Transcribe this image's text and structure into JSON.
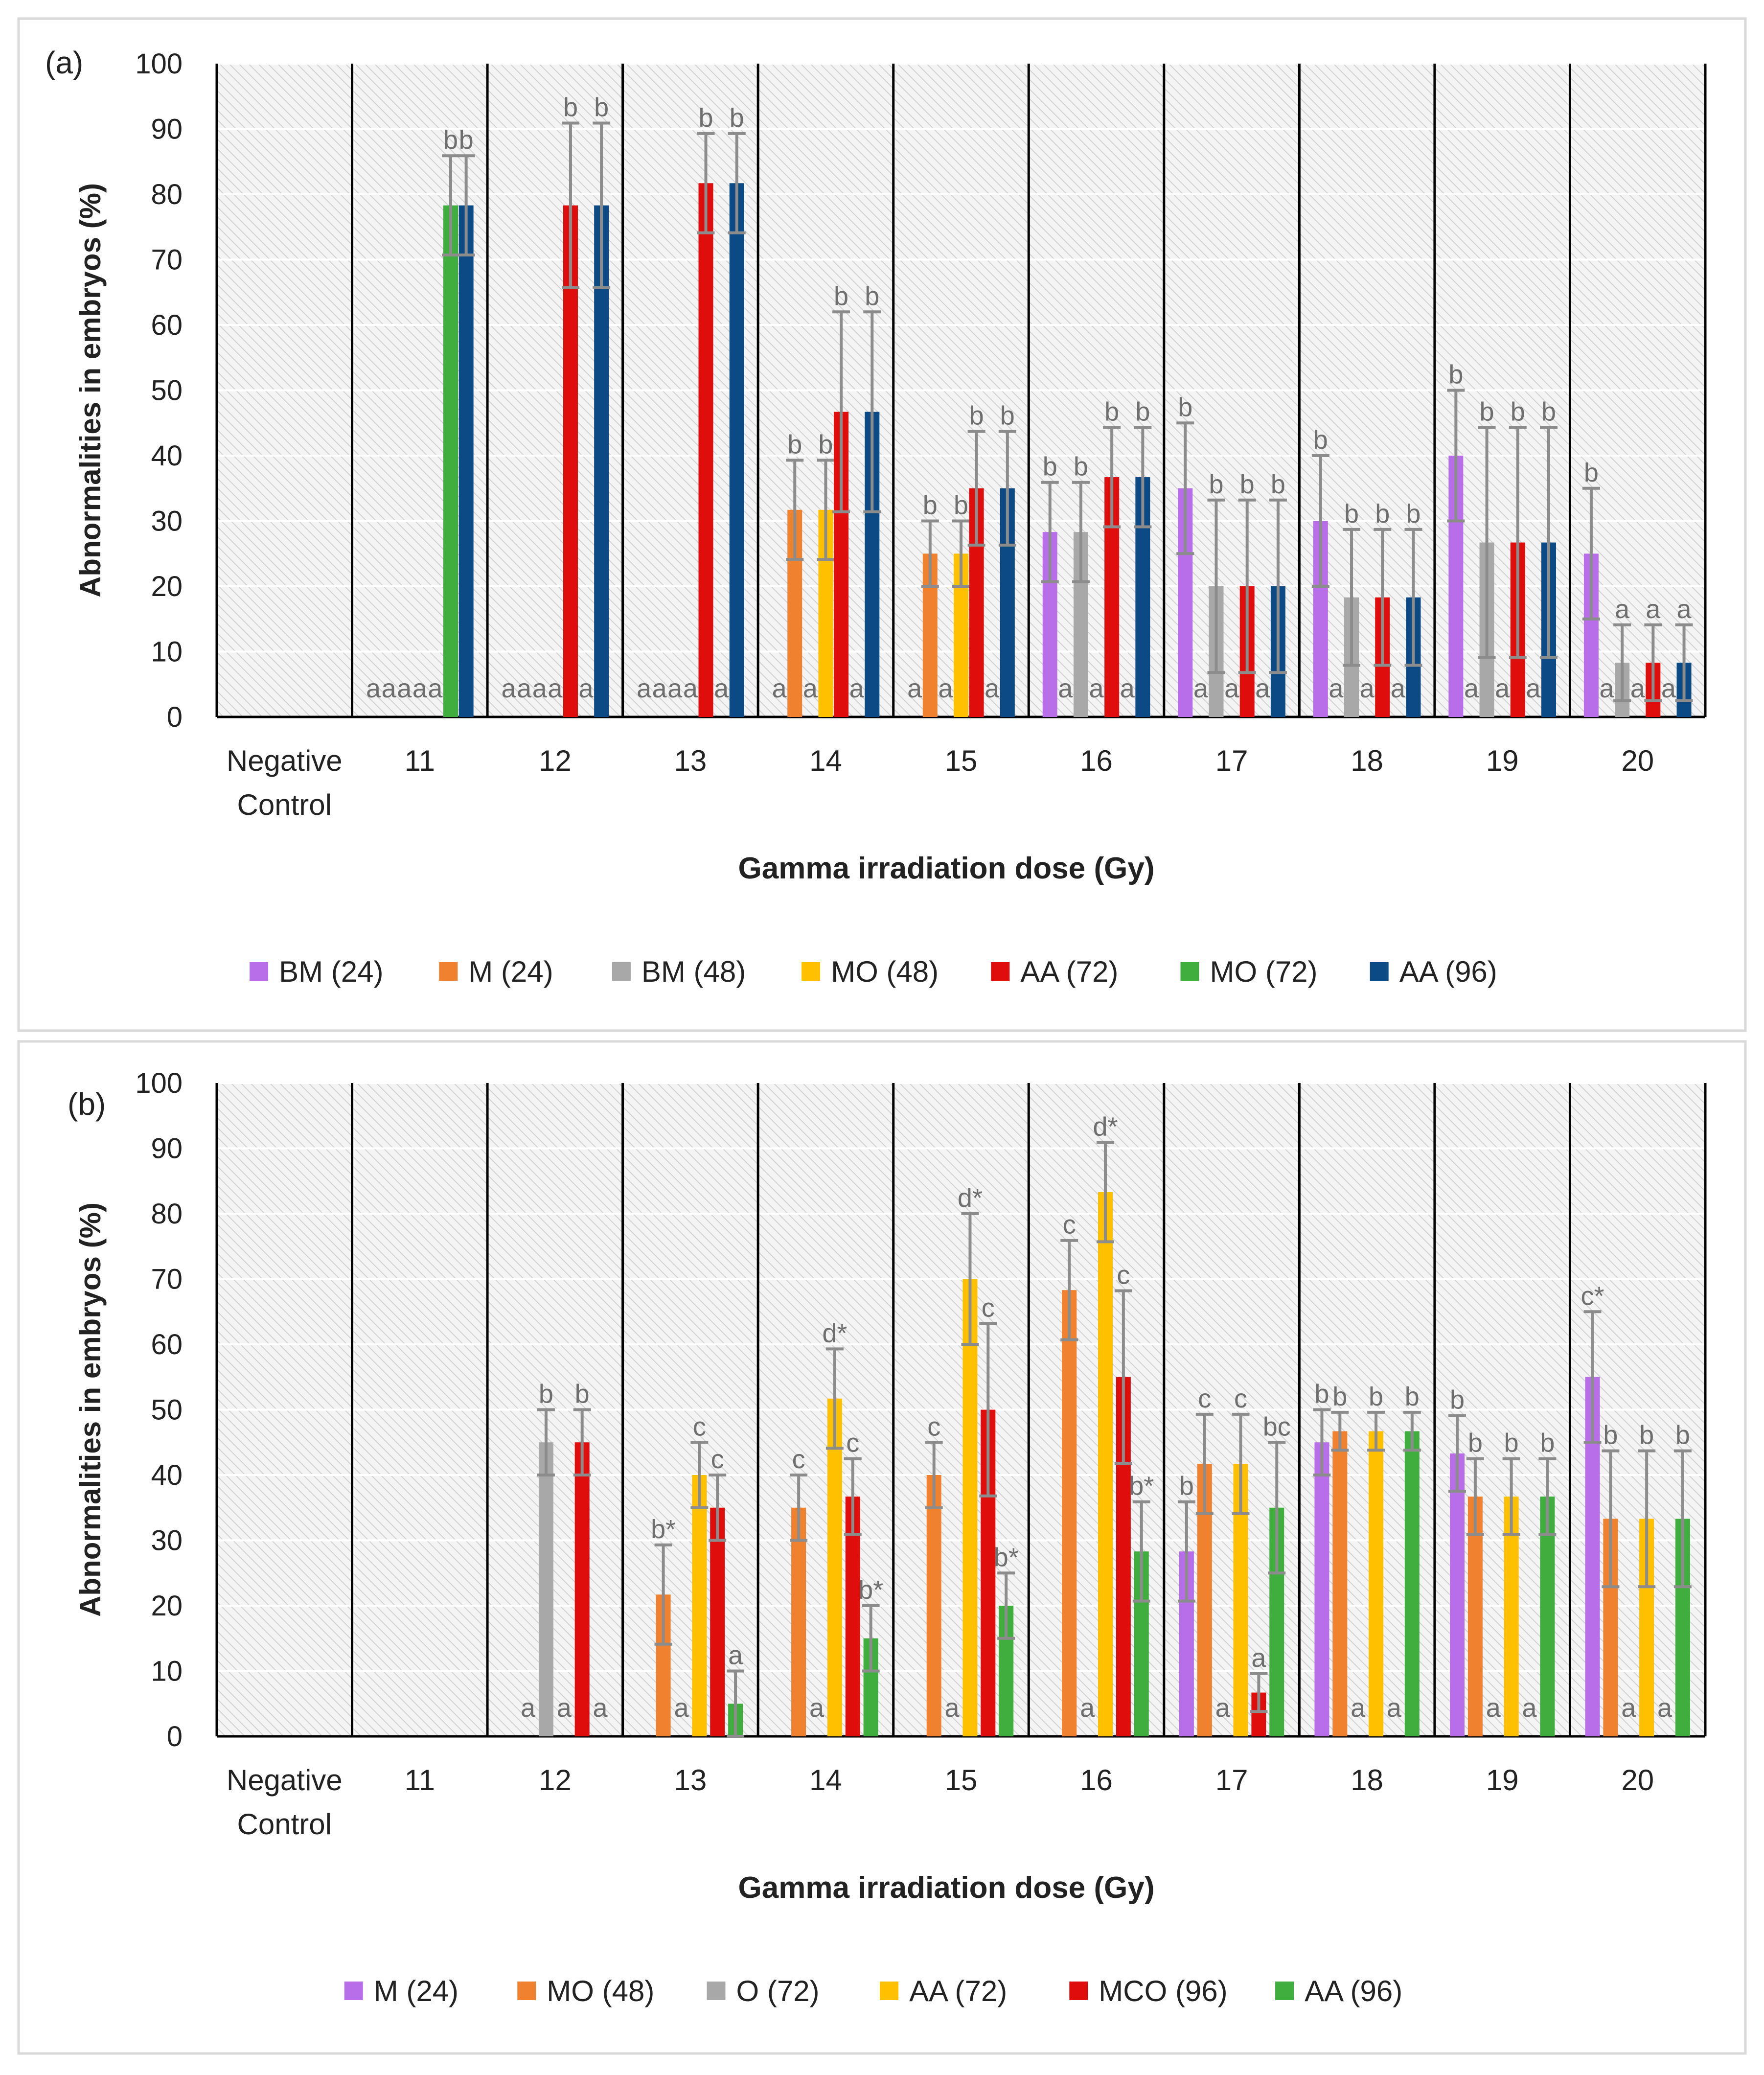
{
  "chart_data": [
    {
      "panel_label": "(a)",
      "type": "bar",
      "title": "",
      "xlabel": "Gamma irradiation dose (Gy)",
      "ylabel": "Abnormalities in embryos (%)",
      "ylim": [
        0,
        100
      ],
      "yticks": [
        "0",
        "10",
        "20",
        "30",
        "40",
        "50",
        "60",
        "70",
        "80",
        "90",
        "100"
      ],
      "categories": [
        "Negative Control",
        "11",
        "12",
        "13",
        "14",
        "15",
        "16",
        "17",
        "18",
        "19",
        "20"
      ],
      "category_lines": [
        [
          "Negative",
          "Control"
        ],
        [
          "11"
        ],
        [
          "12"
        ],
        [
          "13"
        ],
        [
          "14"
        ],
        [
          "15"
        ],
        [
          "16"
        ],
        [
          "17"
        ],
        [
          "18"
        ],
        [
          "19"
        ],
        [
          "20"
        ]
      ],
      "grid": true,
      "legend_position": "bottom",
      "series": [
        {
          "name": "BM (24)",
          "color": "#b76ee8",
          "values": [
            0,
            0,
            0,
            0,
            0,
            0,
            28.3,
            35,
            30,
            40,
            25
          ],
          "errors": [
            0,
            0,
            0,
            0,
            0,
            0,
            7.6,
            10,
            10,
            10,
            10
          ],
          "labels": [
            "",
            "a",
            "a",
            "a",
            "a",
            "a",
            "b",
            "b",
            "b",
            "b",
            "b"
          ]
        },
        {
          "name": "M (24)",
          "color": "#f0812f",
          "values": [
            0,
            0,
            0,
            0,
            31.7,
            25,
            0,
            0,
            0,
            0,
            0
          ],
          "errors": [
            0,
            0,
            0,
            0,
            7.6,
            5,
            0,
            0,
            0,
            0,
            0
          ],
          "labels": [
            "",
            "a",
            "a",
            "a",
            "b",
            "b",
            "a",
            "a",
            "a",
            "a",
            "a"
          ]
        },
        {
          "name": "BM (48)",
          "color": "#a8a8a8",
          "values": [
            0,
            0,
            0,
            0,
            0,
            0,
            28.3,
            20,
            18.3,
            26.7,
            8.3
          ],
          "errors": [
            0,
            0,
            0,
            0,
            0,
            0,
            7.6,
            13.2,
            10.4,
            17.6,
            5.8
          ],
          "labels": [
            "",
            "a",
            "a",
            "a",
            "a",
            "a",
            "b",
            "b",
            "b",
            "b",
            "a"
          ]
        },
        {
          "name": "MO (48)",
          "color": "#ffc000",
          "values": [
            0,
            0,
            0,
            0,
            31.7,
            25,
            0,
            0,
            0,
            0,
            0
          ],
          "errors": [
            0,
            0,
            0,
            0,
            7.6,
            5,
            0,
            0,
            0,
            0,
            0
          ],
          "labels": [
            "",
            "a",
            "a",
            "a",
            "b",
            "b",
            "a",
            "a",
            "a",
            "a",
            "a"
          ]
        },
        {
          "name": "AA (72)",
          "color": "#e00d0d",
          "values": [
            0,
            0,
            78.3,
            81.7,
            46.7,
            35,
            36.7,
            20,
            18.3,
            26.7,
            8.3
          ],
          "errors": [
            0,
            0,
            12.6,
            7.6,
            15.3,
            8.7,
            7.6,
            13.2,
            10.4,
            17.6,
            5.8
          ],
          "labels": [
            "",
            "a",
            "b",
            "b",
            "b",
            "b",
            "b",
            "b",
            "b",
            "b",
            "a"
          ]
        },
        {
          "name": "MO (72)",
          "color": "#3fae3f",
          "values": [
            0,
            78.3,
            0,
            0,
            0,
            0,
            0,
            0,
            0,
            0,
            0
          ],
          "errors": [
            0,
            7.6,
            0,
            0,
            0,
            0,
            0,
            0,
            0,
            0,
            0
          ],
          "labels": [
            "",
            "b",
            "a",
            "a",
            "a",
            "a",
            "a",
            "a",
            "a",
            "a",
            "a"
          ]
        },
        {
          "name": "AA (96)",
          "color": "#0b4a85",
          "values": [
            0,
            78.3,
            78.3,
            81.7,
            46.7,
            35,
            36.7,
            20,
            18.3,
            26.7,
            8.3
          ],
          "errors": [
            0,
            7.6,
            12.6,
            7.6,
            15.3,
            8.7,
            7.6,
            13.2,
            10.4,
            17.6,
            5.8
          ],
          "labels": [
            "",
            "b",
            "b",
            "b",
            "b",
            "b",
            "b",
            "b",
            "b",
            "b",
            "a"
          ]
        }
      ]
    },
    {
      "panel_label": "(b)",
      "type": "bar",
      "title": "",
      "xlabel": "Gamma irradiation dose (Gy)",
      "ylabel": "Abnormalities in embryos (%)",
      "ylim": [
        0,
        100
      ],
      "yticks": [
        "0",
        "10",
        "20",
        "30",
        "40",
        "50",
        "60",
        "70",
        "80",
        "90",
        "100"
      ],
      "categories": [
        "Negative Control",
        "11",
        "12",
        "13",
        "14",
        "15",
        "16",
        "17",
        "18",
        "19",
        "20"
      ],
      "category_lines": [
        [
          "Negative",
          "Control"
        ],
        [
          "11"
        ],
        [
          "12"
        ],
        [
          "13"
        ],
        [
          "14"
        ],
        [
          "15"
        ],
        [
          "16"
        ],
        [
          "17"
        ],
        [
          "18"
        ],
        [
          "19"
        ],
        [
          "20"
        ]
      ],
      "grid": true,
      "legend_position": "bottom",
      "series": [
        {
          "name": "M (24)",
          "color": "#b76ee8",
          "values": [
            0,
            0,
            0,
            0,
            0,
            0,
            0,
            28.3,
            45,
            43.3,
            55
          ],
          "errors": [
            0,
            0,
            0,
            0,
            0,
            0,
            0,
            7.6,
            5,
            5.8,
            10
          ],
          "labels": [
            "",
            "",
            "",
            "",
            "",
            "",
            "",
            "b",
            "b",
            "b",
            "c*"
          ]
        },
        {
          "name": "MO (48)",
          "color": "#f0812f",
          "values": [
            0,
            0,
            0,
            21.7,
            35,
            40,
            68.3,
            41.7,
            46.7,
            36.7,
            33.3
          ],
          "errors": [
            0,
            0,
            0,
            7.6,
            5,
            5,
            7.6,
            7.6,
            2.9,
            5.8,
            10.4
          ],
          "labels": [
            "",
            "",
            "a",
            "b*",
            "c",
            "c",
            "c",
            "c",
            "b",
            "b",
            "b"
          ]
        },
        {
          "name": "O (72)",
          "color": "#a8a8a8",
          "values": [
            0,
            0,
            45,
            0,
            0,
            0,
            0,
            0,
            0,
            0,
            0
          ],
          "errors": [
            0,
            0,
            5,
            0,
            0,
            0,
            0,
            0,
            0,
            0,
            0
          ],
          "labels": [
            "",
            "",
            "b",
            "a",
            "a",
            "a",
            "a",
            "a",
            "a",
            "a",
            "a"
          ]
        },
        {
          "name": "AA (72)",
          "color": "#ffc000",
          "values": [
            0,
            0,
            0,
            40,
            51.7,
            70,
            83.3,
            41.7,
            46.7,
            36.7,
            33.3
          ],
          "errors": [
            0,
            0,
            0,
            5,
            7.6,
            10,
            7.6,
            7.6,
            2.9,
            5.8,
            10.4
          ],
          "labels": [
            "",
            "",
            "a",
            "c",
            "d*",
            "d*",
            "d*",
            "c",
            "b",
            "b",
            "b"
          ]
        },
        {
          "name": "MCO (96)",
          "color": "#e00d0d",
          "values": [
            0,
            0,
            45,
            35,
            36.7,
            50,
            55,
            6.7,
            0,
            0,
            0
          ],
          "errors": [
            0,
            0,
            5,
            5,
            5.8,
            13.2,
            13.2,
            2.9,
            0,
            0,
            0
          ],
          "labels": [
            "",
            "",
            "b",
            "c",
            "c",
            "c",
            "c",
            "a",
            "a",
            "a",
            "a"
          ]
        },
        {
          "name": "AA (96)",
          "color": "#3fae3f",
          "values": [
            0,
            0,
            0,
            5,
            15,
            20,
            28.3,
            35,
            46.7,
            36.7,
            33.3
          ],
          "errors": [
            0,
            0,
            0,
            5,
            5,
            5,
            7.6,
            10,
            2.9,
            5.8,
            10.4
          ],
          "labels": [
            "",
            "",
            "a",
            "a",
            "b*",
            "b*",
            "b*",
            "bc",
            "b",
            "b",
            "b"
          ]
        }
      ]
    }
  ]
}
